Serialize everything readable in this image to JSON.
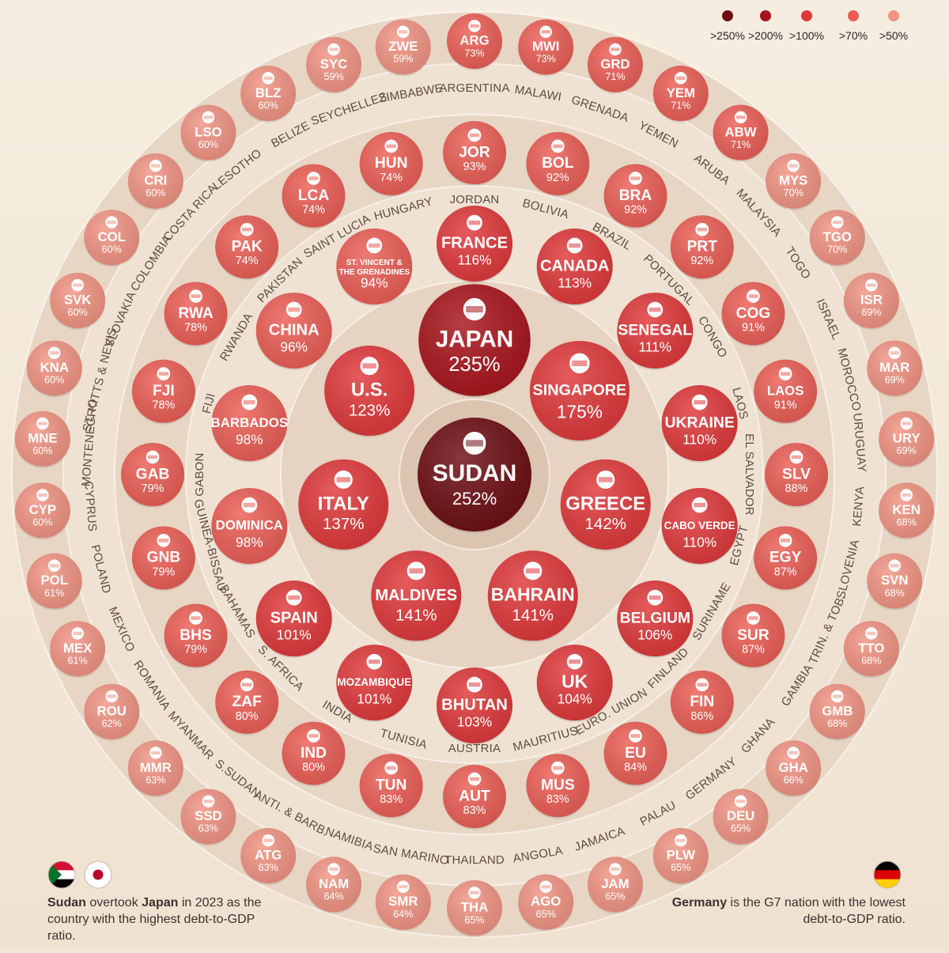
{
  "colors": {
    "gt250": "#6d0d12",
    "gt200": "#a8141b",
    "gt100": "#e0383a",
    "gt70": "#ec5e55",
    "gt50": "#f29483",
    "background": "#f1e6d6"
  },
  "legend": [
    {
      "label": ">250%",
      "color": "#6d0d12"
    },
    {
      "label": ">200%",
      "color": "#a8141b"
    },
    {
      "label": ">100%",
      "color": "#e0383a"
    },
    {
      "label": ">70%",
      "color": "#ec5e55"
    },
    {
      "label": ">50%",
      "color": "#f29483"
    }
  ],
  "notes": {
    "left": {
      "b1": "Sudan",
      "t1": " overtook ",
      "b2": "Japan",
      "t2": " in 2023 as the country with the highest debt-to-GDP ratio."
    },
    "right": {
      "b1": "Germany",
      "t1": " is the G7 nation with the lowest debt-to-GDP ratio."
    }
  },
  "chart_data": {
    "type": "bubble",
    "unit": "% debt-to-GDP",
    "countries": [
      {
        "code": "SUDAN",
        "value": 252,
        "label": "252%",
        "ring": 0
      },
      {
        "code": "JAPAN",
        "value": 235,
        "label": "235%",
        "ring": 1
      },
      {
        "code": "SINGAPORE",
        "value": 175,
        "label": "175%",
        "ring": 1
      },
      {
        "code": "GREECE",
        "value": 142,
        "label": "142%",
        "ring": 1
      },
      {
        "code": "BAHRAIN",
        "value": 141,
        "label": "141%",
        "ring": 1
      },
      {
        "code": "MALDIVES",
        "value": 141,
        "label": "141%",
        "ring": 1
      },
      {
        "code": "ITALY",
        "value": 137,
        "label": "137%",
        "ring": 1
      },
      {
        "code": "U.S.",
        "value": 123,
        "label": "123%",
        "ring": 1
      },
      {
        "code": "FRANCE",
        "value": 116,
        "label": "116%",
        "ring": 2
      },
      {
        "code": "CANADA",
        "value": 113,
        "label": "113%",
        "ring": 2
      },
      {
        "code": "SENEGAL",
        "value": 111,
        "label": "111%",
        "ring": 2
      },
      {
        "code": "UKRAINE",
        "value": 110,
        "label": "110%",
        "ring": 2
      },
      {
        "code": "CABO VERDE",
        "value": 110,
        "label": "110%",
        "ring": 2
      },
      {
        "code": "BELGIUM",
        "value": 106,
        "label": "106%",
        "ring": 2
      },
      {
        "code": "UK",
        "value": 104,
        "label": "104%",
        "ring": 2
      },
      {
        "code": "BHUTAN",
        "value": 103,
        "label": "103%",
        "ring": 2
      },
      {
        "code": "MOZAMBIQUE",
        "value": 101,
        "label": "101%",
        "ring": 2
      },
      {
        "code": "SPAIN",
        "value": 101,
        "label": "101%",
        "ring": 2
      },
      {
        "code": "DOMINICA",
        "value": 98,
        "label": "98%",
        "ring": 2
      },
      {
        "code": "BARBADOS",
        "value": 98,
        "label": "98%",
        "ring": 2
      },
      {
        "code": "CHINA",
        "value": 96,
        "label": "96%",
        "ring": 2
      },
      {
        "code": "ST. VINCENT & THE GRENADINES",
        "line1": "ST. VINCENT &",
        "line2": "THE GRENADINES",
        "value": 94,
        "label": "94%",
        "ring": 2
      },
      {
        "code": "JOR",
        "name": "JORDAN",
        "value": 93,
        "label": "93%",
        "ring": 3
      },
      {
        "code": "BOL",
        "name": "BOLIVIA",
        "value": 92,
        "label": "92%",
        "ring": 3
      },
      {
        "code": "BRA",
        "name": "BRAZIL",
        "value": 92,
        "label": "92%",
        "ring": 3
      },
      {
        "code": "PRT",
        "name": "PORTUGAL",
        "value": 92,
        "label": "92%",
        "ring": 3
      },
      {
        "code": "COG",
        "name": "CONGO",
        "value": 91,
        "label": "91%",
        "ring": 3
      },
      {
        "code": "LAOS",
        "name": "LAOS",
        "value": 91,
        "label": "91%",
        "ring": 3
      },
      {
        "code": "SLV",
        "name": "EL SALVADOR",
        "value": 88,
        "label": "88%",
        "ring": 3
      },
      {
        "code": "EGY",
        "name": "EGYPT",
        "value": 87,
        "label": "87%",
        "ring": 3
      },
      {
        "code": "SUR",
        "name": "SURINAME",
        "value": 87,
        "label": "87%",
        "ring": 3
      },
      {
        "code": "FIN",
        "name": "FINLAND",
        "value": 86,
        "label": "86%",
        "ring": 3
      },
      {
        "code": "EU",
        "name": "EURO. UNION",
        "value": 84,
        "label": "84%",
        "ring": 3
      },
      {
        "code": "MUS",
        "name": "MAURITIUS",
        "value": 83,
        "label": "83%",
        "ring": 3
      },
      {
        "code": "AUT",
        "name": "AUSTRIA",
        "value": 83,
        "label": "83%",
        "ring": 3
      },
      {
        "code": "TUN",
        "name": "TUNISIA",
        "value": 83,
        "label": "83%",
        "ring": 3
      },
      {
        "code": "IND",
        "name": "INDIA",
        "value": 80,
        "label": "80%",
        "ring": 3
      },
      {
        "code": "ZAF",
        "name": "S. AFRICA",
        "value": 80,
        "label": "80%",
        "ring": 3
      },
      {
        "code": "BHS",
        "name": "BAHAMAS",
        "value": 79,
        "label": "79%",
        "ring": 3
      },
      {
        "code": "GNB",
        "name": "GUINEA-BISSAU",
        "value": 79,
        "label": "79%",
        "ring": 3
      },
      {
        "code": "GAB",
        "name": "GABON",
        "value": 79,
        "label": "79%",
        "ring": 3
      },
      {
        "code": "FJI",
        "name": "FIJI",
        "value": 78,
        "label": "78%",
        "ring": 3
      },
      {
        "code": "RWA",
        "name": "RWANDA",
        "value": 78,
        "label": "78%",
        "ring": 3
      },
      {
        "code": "PAK",
        "name": "PAKISTAN",
        "value": 74,
        "label": "74%",
        "ring": 3
      },
      {
        "code": "LCA",
        "name": "SAINT LUCIA",
        "value": 74,
        "label": "74%",
        "ring": 3
      },
      {
        "code": "HUN",
        "name": "HUNGARY",
        "value": 74,
        "label": "74%",
        "ring": 3
      },
      {
        "code": "ARG",
        "name": "ARGENTINA",
        "value": 73,
        "label": "73%",
        "ring": 4
      },
      {
        "code": "MWI",
        "name": "MALAWI",
        "value": 73,
        "label": "73%",
        "ring": 4
      },
      {
        "code": "GRD",
        "name": "GRENADA",
        "value": 71,
        "label": "71%",
        "ring": 4
      },
      {
        "code": "YEM",
        "name": "YEMEN",
        "value": 71,
        "label": "71%",
        "ring": 4
      },
      {
        "code": "ABW",
        "name": "ARUBA",
        "value": 71,
        "label": "71%",
        "ring": 4
      },
      {
        "code": "MYS",
        "name": "MALAYSIA",
        "value": 70,
        "label": "70%",
        "ring": 4
      },
      {
        "code": "TGO",
        "name": "TOGO",
        "value": 70,
        "label": "70%",
        "ring": 4
      },
      {
        "code": "ISR",
        "name": "ISRAEL",
        "value": 69,
        "label": "69%",
        "ring": 4
      },
      {
        "code": "MAR",
        "name": "MOROCCO",
        "value": 69,
        "label": "69%",
        "ring": 4
      },
      {
        "code": "URY",
        "name": "URUGUAY",
        "value": 69,
        "label": "69%",
        "ring": 4
      },
      {
        "code": "KEN",
        "name": "KENYA",
        "value": 68,
        "label": "68%",
        "ring": 4
      },
      {
        "code": "SVN",
        "name": "SLOVENIA",
        "value": 68,
        "label": "68%",
        "ring": 4
      },
      {
        "code": "TTO",
        "name": "TRIN. & TOB.",
        "value": 68,
        "label": "68%",
        "ring": 4
      },
      {
        "code": "GMB",
        "name": "GAMBIA",
        "value": 68,
        "label": "68%",
        "ring": 4
      },
      {
        "code": "GHA",
        "name": "GHANA",
        "value": 66,
        "label": "66%",
        "ring": 4
      },
      {
        "code": "DEU",
        "name": "GERMANY",
        "value": 65,
        "label": "65%",
        "ring": 4
      },
      {
        "code": "PLW",
        "name": "PALAU",
        "value": 65,
        "label": "65%",
        "ring": 4
      },
      {
        "code": "JAM",
        "name": "JAMAICA",
        "value": 65,
        "label": "65%",
        "ring": 4
      },
      {
        "code": "AGO",
        "name": "ANGOLA",
        "value": 65,
        "label": "65%",
        "ring": 4
      },
      {
        "code": "THA",
        "name": "THAILAND",
        "value": 65,
        "label": "65%",
        "ring": 4
      },
      {
        "code": "SMR",
        "name": "SAN MARINO",
        "value": 64,
        "label": "64%",
        "ring": 4
      },
      {
        "code": "NAM",
        "name": "NAMIBIA",
        "value": 64,
        "label": "64%",
        "ring": 4
      },
      {
        "code": "ATG",
        "name": "ANTI. & BARB.",
        "value": 63,
        "label": "63%",
        "ring": 4
      },
      {
        "code": "SSD",
        "name": "S.SUDAN",
        "value": 63,
        "label": "63%",
        "ring": 4
      },
      {
        "code": "MMR",
        "name": "MYANMAR",
        "value": 63,
        "label": "63%",
        "ring": 4
      },
      {
        "code": "ROU",
        "name": "ROMANIA",
        "value": 62,
        "label": "62%",
        "ring": 4
      },
      {
        "code": "MEX",
        "name": "MEXICO",
        "value": 61,
        "label": "61%",
        "ring": 4
      },
      {
        "code": "POL",
        "name": "POLAND",
        "value": 61,
        "label": "61%",
        "ring": 4
      },
      {
        "code": "CYP",
        "name": "CYPRUS",
        "value": 60,
        "label": "60%",
        "ring": 4
      },
      {
        "code": "MNE",
        "name": "MONTENEGRO",
        "value": 60,
        "label": "60%",
        "ring": 4
      },
      {
        "code": "KNA",
        "name": "ST. KITTS & NEVIS",
        "value": 60,
        "label": "60%",
        "ring": 4
      },
      {
        "code": "SVK",
        "name": "SLOVAKIA",
        "value": 60,
        "label": "60%",
        "ring": 4
      },
      {
        "code": "COL",
        "name": "COLOMBIA",
        "value": 60,
        "label": "60%",
        "ring": 4
      },
      {
        "code": "CRI",
        "name": "COSTA RICA",
        "value": 60,
        "label": "60%",
        "ring": 4
      },
      {
        "code": "LSO",
        "name": "LESOTHO",
        "value": 60,
        "label": "60%",
        "ring": 4
      },
      {
        "code": "BLZ",
        "name": "BELIZE",
        "value": 60,
        "label": "60%",
        "ring": 4
      },
      {
        "code": "SYC",
        "name": "SEYCHELLES",
        "value": 59,
        "label": "59%",
        "ring": 4
      },
      {
        "code": "ZWE",
        "name": "ZIMBABWE",
        "value": 59,
        "label": "59%",
        "ring": 4
      }
    ]
  }
}
